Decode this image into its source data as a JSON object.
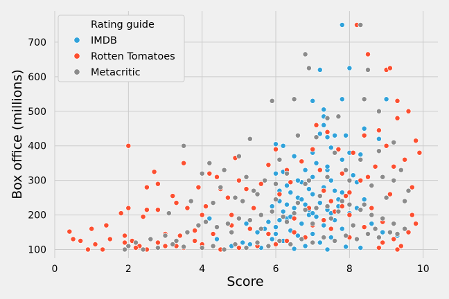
{
  "chart_data": {
    "type": "scatter",
    "xlabel": "Score",
    "ylabel": "Box office (millions)",
    "xlim": [
      0,
      10.4
    ],
    "ylim": [
      75,
      790
    ],
    "x_ticks": [
      "0",
      "2",
      "4",
      "6",
      "8",
      "10"
    ],
    "y_ticks": [
      "100",
      "200",
      "300",
      "400",
      "500",
      "600",
      "700"
    ],
    "grid": true,
    "legend_placement": "top-left",
    "legend": {
      "title": "Rating guide"
    },
    "series": [
      {
        "name": "IMDB",
        "color": "#30a2da",
        "points": [
          [
            7.8,
            750
          ],
          [
            7.2,
            620
          ],
          [
            7.0,
            530
          ],
          [
            7.8,
            535
          ],
          [
            8.0,
            625
          ],
          [
            9.0,
            535
          ],
          [
            7.3,
            505
          ],
          [
            7.3,
            485
          ],
          [
            7.3,
            460
          ],
          [
            8.4,
            450
          ],
          [
            7.2,
            435
          ],
          [
            7.6,
            430
          ],
          [
            7.4,
            425
          ],
          [
            7.9,
            430
          ],
          [
            8.8,
            420
          ],
          [
            6.0,
            405
          ],
          [
            6.2,
            400
          ],
          [
            8.0,
            380
          ],
          [
            6.5,
            370
          ],
          [
            7.5,
            395
          ],
          [
            7.0,
            380
          ],
          [
            8.3,
            375
          ],
          [
            7.1,
            350
          ],
          [
            7.8,
            360
          ],
          [
            6.8,
            330
          ],
          [
            7.4,
            330
          ],
          [
            6.2,
            325
          ],
          [
            6.0,
            320
          ],
          [
            8.1,
            315
          ],
          [
            7.0,
            310
          ],
          [
            7.5,
            300
          ],
          [
            6.7,
            295
          ],
          [
            8.2,
            295
          ],
          [
            6.3,
            285
          ],
          [
            7.3,
            280
          ],
          [
            6.9,
            275
          ],
          [
            7.6,
            270
          ],
          [
            6.4,
            265
          ],
          [
            7.0,
            260
          ],
          [
            7.9,
            255
          ],
          [
            6.6,
            250
          ],
          [
            8.4,
            245
          ],
          [
            6.1,
            240
          ],
          [
            7.2,
            235
          ],
          [
            6.8,
            230
          ],
          [
            7.7,
            225
          ],
          [
            6.5,
            220
          ],
          [
            7.4,
            215
          ],
          [
            6.2,
            210
          ],
          [
            8.0,
            205
          ],
          [
            6.9,
            200
          ],
          [
            7.1,
            195
          ],
          [
            6.3,
            190
          ],
          [
            7.6,
            185
          ],
          [
            5.8,
            180
          ],
          [
            6.7,
            175
          ],
          [
            7.3,
            170
          ],
          [
            6.0,
            165
          ],
          [
            7.8,
            160
          ],
          [
            6.4,
            155
          ],
          [
            5.5,
            150
          ],
          [
            7.0,
            145
          ],
          [
            6.6,
            140
          ],
          [
            7.5,
            135
          ],
          [
            5.9,
            130
          ],
          [
            6.2,
            125
          ],
          [
            7.2,
            120
          ],
          [
            5.3,
            115
          ],
          [
            6.8,
            110
          ],
          [
            7.9,
            108
          ],
          [
            5.6,
            105
          ],
          [
            6.5,
            102
          ],
          [
            7.4,
            100
          ],
          [
            8.3,
            105
          ],
          [
            4.8,
            110
          ],
          [
            5.1,
            120
          ],
          [
            4.4,
            130
          ],
          [
            4.2,
            190
          ],
          [
            5.7,
            160
          ],
          [
            6.1,
            185
          ],
          [
            6.9,
            215
          ],
          [
            7.7,
            245
          ],
          [
            6.3,
            230
          ],
          [
            7.0,
            205
          ],
          [
            8.6,
            175
          ],
          [
            8.9,
            150
          ],
          [
            9.3,
            140
          ],
          [
            6.6,
            300
          ],
          [
            7.4,
            340
          ],
          [
            5.2,
            175
          ],
          [
            5.9,
            225
          ],
          [
            6.7,
            245
          ],
          [
            7.8,
            265
          ],
          [
            6.1,
            270
          ],
          [
            7.5,
            205
          ],
          [
            6.4,
            195
          ],
          [
            8.2,
            220
          ],
          [
            6.0,
            145
          ]
        ]
      },
      {
        "name": "Rotten Tomatoes",
        "color": "#fc4f30",
        "points": [
          [
            0.4,
            152
          ],
          [
            0.5,
            130
          ],
          [
            0.7,
            125
          ],
          [
            0.9,
            100
          ],
          [
            1.0,
            160
          ],
          [
            1.1,
            115
          ],
          [
            1.3,
            100
          ],
          [
            1.4,
            170
          ],
          [
            1.5,
            130
          ],
          [
            1.8,
            205
          ],
          [
            1.9,
            140
          ],
          [
            2.0,
            400
          ],
          [
            2.0,
            220
          ],
          [
            2.1,
            125
          ],
          [
            2.3,
            110
          ],
          [
            2.4,
            195
          ],
          [
            2.5,
            280
          ],
          [
            2.5,
            215
          ],
          [
            2.7,
            325
          ],
          [
            2.8,
            290
          ],
          [
            2.8,
            215
          ],
          [
            3.0,
            145
          ],
          [
            3.2,
            255
          ],
          [
            3.3,
            235
          ],
          [
            3.4,
            140
          ],
          [
            3.5,
            350
          ],
          [
            3.6,
            220
          ],
          [
            3.8,
            125
          ],
          [
            3.9,
            280
          ],
          [
            4.0,
            200
          ],
          [
            4.1,
            225
          ],
          [
            4.2,
            320
          ],
          [
            4.4,
            310
          ],
          [
            4.5,
            275
          ],
          [
            4.7,
            250
          ],
          [
            4.8,
            200
          ],
          [
            4.9,
            365
          ],
          [
            5.0,
            300
          ],
          [
            5.2,
            275
          ],
          [
            5.3,
            420
          ],
          [
            5.4,
            220
          ],
          [
            5.6,
            290
          ],
          [
            5.8,
            345
          ],
          [
            6.0,
            390
          ],
          [
            6.1,
            260
          ],
          [
            6.3,
            330
          ],
          [
            6.4,
            295
          ],
          [
            6.5,
            190
          ],
          [
            6.7,
            355
          ],
          [
            6.9,
            220
          ],
          [
            7.0,
            390
          ],
          [
            7.1,
            460
          ],
          [
            7.2,
            330
          ],
          [
            7.3,
            270
          ],
          [
            7.4,
            440
          ],
          [
            7.5,
            240
          ],
          [
            7.6,
            210
          ],
          [
            7.7,
            390
          ],
          [
            7.8,
            320
          ],
          [
            7.9,
            255
          ],
          [
            8.0,
            200
          ],
          [
            8.1,
            380
          ],
          [
            8.2,
            750
          ],
          [
            8.3,
            300
          ],
          [
            8.4,
            430
          ],
          [
            8.5,
            665
          ],
          [
            8.6,
            220
          ],
          [
            8.7,
            340
          ],
          [
            8.8,
            445
          ],
          [
            8.9,
            180
          ],
          [
            9.0,
            620
          ],
          [
            9.1,
            625
          ],
          [
            9.2,
            340
          ],
          [
            9.3,
            480
          ],
          [
            9.3,
            530
          ],
          [
            9.4,
            330
          ],
          [
            9.5,
            360
          ],
          [
            9.6,
            500
          ],
          [
            9.7,
            200
          ],
          [
            9.8,
            415
          ],
          [
            9.9,
            380
          ],
          [
            9.0,
            400
          ],
          [
            8.5,
            310
          ],
          [
            8.0,
            265
          ],
          [
            7.5,
            160
          ],
          [
            7.0,
            170
          ],
          [
            6.5,
            150
          ],
          [
            6.0,
            115
          ],
          [
            5.5,
            110
          ],
          [
            5.0,
            105
          ],
          [
            4.5,
            100
          ],
          [
            4.0,
            115
          ],
          [
            3.5,
            105
          ],
          [
            3.0,
            110
          ],
          [
            2.5,
            100
          ],
          [
            8.9,
            120
          ],
          [
            9.2,
            130
          ],
          [
            9.4,
            110
          ],
          [
            9.6,
            150
          ],
          [
            9.8,
            175
          ],
          [
            9.1,
            260
          ],
          [
            8.6,
            285
          ],
          [
            7.8,
            225
          ],
          [
            7.3,
            185
          ],
          [
            6.8,
            135
          ],
          [
            6.3,
            125
          ],
          [
            5.8,
            145
          ],
          [
            5.3,
            160
          ],
          [
            4.8,
            170
          ],
          [
            4.3,
            145
          ],
          [
            3.8,
            155
          ],
          [
            3.3,
            110
          ],
          [
            2.8,
            120
          ],
          [
            2.2,
            105
          ],
          [
            1.9,
            120
          ],
          [
            8.0,
            135
          ],
          [
            8.4,
            165
          ],
          [
            8.8,
            105
          ],
          [
            9.3,
            100
          ],
          [
            9.7,
            280
          ]
        ]
      },
      {
        "name": "Metacritic",
        "color": "#8b8b8b",
        "points": [
          [
            8.3,
            750
          ],
          [
            6.8,
            665
          ],
          [
            6.9,
            625
          ],
          [
            8.5,
            620
          ],
          [
            6.5,
            535
          ],
          [
            5.9,
            530
          ],
          [
            8.4,
            535
          ],
          [
            7.7,
            485
          ],
          [
            8.8,
            500
          ],
          [
            7.4,
            480
          ],
          [
            5.3,
            420
          ],
          [
            3.5,
            400
          ],
          [
            6.6,
            430
          ],
          [
            7.1,
            425
          ],
          [
            9.2,
            410
          ],
          [
            4.2,
            350
          ],
          [
            5.0,
            370
          ],
          [
            6.1,
            360
          ],
          [
            7.6,
            380
          ],
          [
            8.8,
            385
          ],
          [
            4.0,
            320
          ],
          [
            4.6,
            330
          ],
          [
            5.2,
            310
          ],
          [
            5.7,
            300
          ],
          [
            6.3,
            320
          ],
          [
            6.8,
            290
          ],
          [
            7.4,
            310
          ],
          [
            8.0,
            300
          ],
          [
            8.6,
            285
          ],
          [
            9.2,
            300
          ],
          [
            9.6,
            270
          ],
          [
            3.1,
            205
          ],
          [
            3.7,
            240
          ],
          [
            4.3,
            235
          ],
          [
            4.9,
            250
          ],
          [
            5.5,
            260
          ],
          [
            6.0,
            245
          ],
          [
            6.6,
            235
          ],
          [
            7.2,
            255
          ],
          [
            7.8,
            240
          ],
          [
            8.4,
            230
          ],
          [
            9.0,
            250
          ],
          [
            9.5,
            240
          ],
          [
            2.0,
            110
          ],
          [
            2.2,
            120
          ],
          [
            2.6,
            130
          ],
          [
            3.0,
            140
          ],
          [
            3.3,
            125
          ],
          [
            3.6,
            150
          ],
          [
            3.9,
            170
          ],
          [
            4.1,
            180
          ],
          [
            4.4,
            165
          ],
          [
            4.7,
            175
          ],
          [
            5.0,
            190
          ],
          [
            5.3,
            185
          ],
          [
            5.6,
            200
          ],
          [
            5.9,
            210
          ],
          [
            6.2,
            195
          ],
          [
            6.5,
            205
          ],
          [
            6.8,
            215
          ],
          [
            7.1,
            220
          ],
          [
            7.4,
            225
          ],
          [
            7.7,
            210
          ],
          [
            8.0,
            230
          ],
          [
            8.3,
            215
          ],
          [
            8.6,
            200
          ],
          [
            8.9,
            190
          ],
          [
            9.2,
            175
          ],
          [
            9.5,
            160
          ],
          [
            4.0,
            105
          ],
          [
            4.3,
            110
          ],
          [
            4.6,
            100
          ],
          [
            4.9,
            115
          ],
          [
            5.2,
            105
          ],
          [
            5.5,
            120
          ],
          [
            5.8,
            110
          ],
          [
            6.1,
            125
          ],
          [
            6.4,
            115
          ],
          [
            6.7,
            130
          ],
          [
            7.0,
            120
          ],
          [
            7.3,
            135
          ],
          [
            7.6,
            125
          ],
          [
            7.9,
            140
          ],
          [
            8.2,
            130
          ],
          [
            8.5,
            145
          ],
          [
            8.8,
            135
          ],
          [
            9.1,
            150
          ],
          [
            2.4,
            100
          ],
          [
            2.8,
            105
          ],
          [
            3.2,
            115
          ],
          [
            3.5,
            108
          ],
          [
            1.9,
            100
          ],
          [
            4.5,
            280
          ],
          [
            5.1,
            240
          ],
          [
            6.9,
            300
          ],
          [
            7.9,
            330
          ],
          [
            8.3,
            360
          ],
          [
            8.9,
            310
          ],
          [
            9.4,
            330
          ],
          [
            6.0,
            290
          ],
          [
            5.4,
            270
          ],
          [
            4.8,
            150
          ],
          [
            5.6,
            160
          ],
          [
            6.3,
            180
          ],
          [
            7.0,
            175
          ],
          [
            7.5,
            190
          ],
          [
            8.1,
            170
          ],
          [
            8.7,
            160
          ],
          [
            9.3,
            145
          ]
        ]
      }
    ]
  }
}
